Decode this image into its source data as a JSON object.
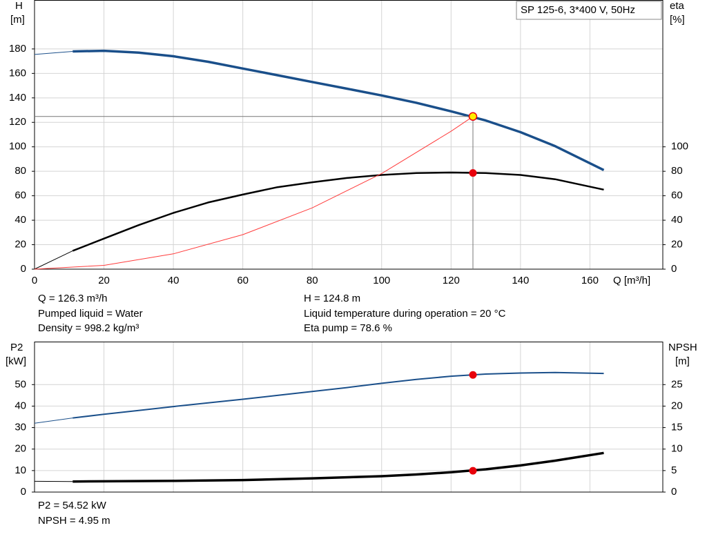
{
  "chart_data": [
    {
      "type": "line",
      "legend_text": "SP 125-6, 3*400 V, 50Hz",
      "ylabel": "H",
      "yunit": "[m]",
      "y2label": "eta",
      "y2unit": "[%]",
      "xlabel": "Q [m³/h]",
      "xlim": [
        0,
        181
      ],
      "xticks": [
        0,
        20,
        40,
        60,
        80,
        100,
        120,
        140,
        160
      ],
      "ylim": [
        0,
        220
      ],
      "yticks": [
        0,
        20,
        40,
        60,
        80,
        100,
        120,
        140,
        160,
        180
      ],
      "y2lim": [
        0,
        220
      ],
      "y2ticks": [
        0,
        20,
        40,
        60,
        80,
        100
      ],
      "grid": true,
      "curve_start": 11,
      "point_x": 126.3,
      "notes": [
        "Q = 126.3 m³/h",
        "Pumped liquid = Water",
        "Density = 998.2 kg/m³",
        "H = 124.8 m",
        "Liquid temperature during operation = 20 °C",
        "Eta pump = 78.6 %"
      ],
      "series": [
        {
          "color": "#1a4f8a",
          "width": 3.5,
          "x": [
            0,
            11,
            20,
            30,
            40,
            50,
            60,
            70,
            80,
            90,
            100,
            110,
            120,
            130,
            140,
            150,
            164
          ],
          "values": [
            175.5,
            178,
            178.5,
            177,
            174,
            169.5,
            164,
            158.5,
            153,
            147.5,
            142,
            136,
            129,
            121.5,
            112,
            100.5,
            81
          ],
          "point": 124.8,
          "point_color": "#ffee00",
          "crosshair": true
        },
        {
          "color": "#000000",
          "width": 2.5,
          "axis": "y2",
          "x": [
            0,
            11,
            20,
            30,
            40,
            50,
            60,
            70,
            80,
            90,
            100,
            110,
            120,
            130,
            140,
            150,
            164
          ],
          "values": [
            0,
            15,
            25,
            36,
            46,
            54.5,
            61,
            67,
            71,
            74.5,
            77,
            78.5,
            79,
            78.5,
            77,
            73.5,
            65
          ],
          "point": 78.6,
          "point_color": "#e8000b"
        },
        {
          "color": "#ff3b3b",
          "width": 1,
          "x": [
            0,
            20,
            40,
            60,
            80,
            100,
            120,
            126.3
          ],
          "values": [
            0,
            3.1,
            12.5,
            28.2,
            50.1,
            78.2,
            112.7,
            124.8
          ]
        }
      ]
    },
    {
      "type": "line",
      "ylabel": "P2",
      "yunit": "[kW]",
      "y2label": "NPSH",
      "y2unit": "[m]",
      "ylim": [
        0,
        70
      ],
      "yticks": [
        0,
        10,
        20,
        30,
        40,
        50
      ],
      "y2lim": [
        0,
        35
      ],
      "y2ticks": [
        0,
        5,
        10,
        15,
        20,
        25
      ],
      "grid": true,
      "notes": [
        "P2 = 54.52 kW",
        "NPSH = 4.95 m"
      ],
      "series": [
        {
          "color": "#1a4f8a",
          "width": 2,
          "x": [
            0,
            11,
            20,
            30,
            40,
            50,
            60,
            70,
            80,
            90,
            100,
            110,
            120,
            130,
            140,
            150,
            164
          ],
          "values": [
            32,
            34.5,
            36.2,
            38,
            39.8,
            41.5,
            43.2,
            45,
            46.8,
            48.6,
            50.6,
            52.4,
            53.9,
            54.9,
            55.4,
            55.6,
            55.2
          ],
          "point": 54.52,
          "point_color": "#e8000b"
        },
        {
          "color": "#000000",
          "width": 3.5,
          "axis": "y2",
          "x": [
            0,
            11,
            20,
            40,
            60,
            80,
            100,
            110,
            120,
            130,
            140,
            150,
            164
          ],
          "values": [
            2.5,
            2.45,
            2.5,
            2.6,
            2.8,
            3.2,
            3.7,
            4.1,
            4.6,
            5.3,
            6.2,
            7.3,
            9.1
          ],
          "point": 4.95,
          "point_color": "#e8000b"
        }
      ]
    }
  ]
}
